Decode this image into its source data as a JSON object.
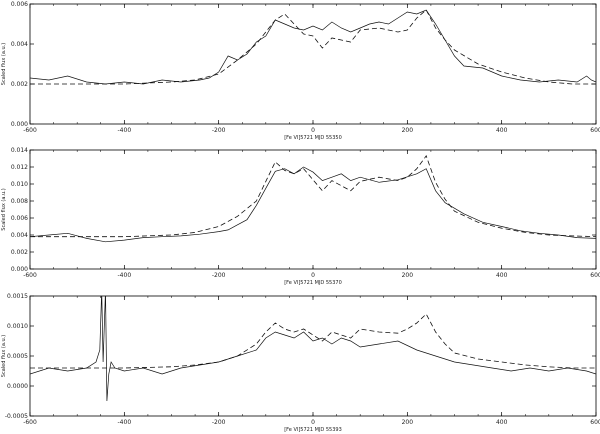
{
  "chart_data": [
    {
      "type": "line",
      "xlabel": "[Fe VI]5721   MJD 55350",
      "ylabel": "Scaled flux (a.u.)",
      "xlim": [
        -600,
        600
      ],
      "ylim": [
        0.0,
        0.006
      ],
      "xticks": [
        "-600",
        "-400",
        "-200",
        "0",
        "200",
        "400",
        "600"
      ],
      "yticks": [
        "0.000",
        "0.002",
        "0.004",
        "0.006"
      ],
      "series": [
        {
          "style": "solid",
          "x": [
            -600,
            -560,
            -520,
            -480,
            -440,
            -400,
            -360,
            -320,
            -280,
            -240,
            -220,
            -200,
            -180,
            -160,
            -140,
            -120,
            -100,
            -80,
            -60,
            -40,
            -20,
            0,
            20,
            40,
            60,
            80,
            100,
            120,
            140,
            160,
            180,
            200,
            220,
            240,
            260,
            280,
            300,
            320,
            360,
            400,
            440,
            480,
            520,
            560,
            580,
            590,
            600
          ],
          "y": [
            0.0023,
            0.0022,
            0.0024,
            0.0021,
            0.002,
            0.0021,
            0.002,
            0.0022,
            0.0021,
            0.0022,
            0.0023,
            0.0026,
            0.0034,
            0.0032,
            0.0035,
            0.0041,
            0.0044,
            0.0052,
            0.005,
            0.0048,
            0.0047,
            0.0049,
            0.0047,
            0.0051,
            0.0048,
            0.0046,
            0.0048,
            0.005,
            0.0051,
            0.005,
            0.0053,
            0.0056,
            0.0055,
            0.0057,
            0.005,
            0.0042,
            0.0034,
            0.0029,
            0.0028,
            0.0024,
            0.0022,
            0.0021,
            0.0022,
            0.0021,
            0.0024,
            0.0022,
            0.0021
          ]
        },
        {
          "style": "dashed",
          "x": [
            -600,
            -500,
            -400,
            -300,
            -250,
            -200,
            -160,
            -120,
            -100,
            -80,
            -60,
            -40,
            -20,
            0,
            20,
            40,
            60,
            80,
            100,
            140,
            180,
            200,
            220,
            240,
            260,
            280,
            300,
            350,
            400,
            450,
            500,
            550,
            600
          ],
          "y": [
            0.002,
            0.002,
            0.002,
            0.0021,
            0.0022,
            0.0025,
            0.0032,
            0.004,
            0.0046,
            0.0052,
            0.0055,
            0.005,
            0.0045,
            0.0044,
            0.0038,
            0.0043,
            0.0042,
            0.0041,
            0.0047,
            0.0048,
            0.0046,
            0.0047,
            0.0053,
            0.0057,
            0.0048,
            0.0042,
            0.0037,
            0.003,
            0.0026,
            0.0023,
            0.0021,
            0.002,
            0.002
          ]
        }
      ]
    },
    {
      "type": "line",
      "xlabel": "[Fe VI]5721   MJD 55370",
      "ylabel": "Scaled flux (a.u.)",
      "xlim": [
        -600,
        600
      ],
      "ylim": [
        0.0,
        0.014
      ],
      "xticks": [
        "-600",
        "-400",
        "-200",
        "0",
        "200",
        "400",
        "600"
      ],
      "yticks": [
        "0.000",
        "0.002",
        "0.004",
        "0.006",
        "0.008",
        "0.010",
        "0.012",
        "0.014"
      ],
      "series": [
        {
          "style": "solid",
          "x": [
            -600,
            -560,
            -520,
            -480,
            -440,
            -400,
            -360,
            -320,
            -280,
            -240,
            -200,
            -180,
            -160,
            -140,
            -120,
            -100,
            -80,
            -60,
            -40,
            -20,
            0,
            20,
            40,
            60,
            80,
            100,
            140,
            180,
            220,
            240,
            260,
            280,
            320,
            360,
            400,
            440,
            480,
            520,
            560,
            600
          ],
          "y": [
            0.0038,
            0.004,
            0.0042,
            0.0036,
            0.0032,
            0.0034,
            0.0037,
            0.0038,
            0.0039,
            0.0041,
            0.0044,
            0.0046,
            0.0052,
            0.0058,
            0.0075,
            0.0095,
            0.0115,
            0.0118,
            0.0112,
            0.012,
            0.0114,
            0.0104,
            0.0108,
            0.0112,
            0.0104,
            0.0108,
            0.0102,
            0.0105,
            0.0112,
            0.0118,
            0.0092,
            0.0078,
            0.0065,
            0.0055,
            0.005,
            0.0045,
            0.0042,
            0.004,
            0.0037,
            0.0036
          ]
        },
        {
          "style": "dashed",
          "x": [
            -600,
            -500,
            -400,
            -300,
            -250,
            -200,
            -160,
            -120,
            -100,
            -80,
            -60,
            -40,
            -20,
            0,
            20,
            40,
            60,
            80,
            100,
            140,
            180,
            200,
            220,
            240,
            260,
            280,
            300,
            350,
            400,
            450,
            500,
            550,
            600
          ],
          "y": [
            0.0038,
            0.0038,
            0.0038,
            0.004,
            0.0043,
            0.005,
            0.0062,
            0.008,
            0.0103,
            0.0126,
            0.0116,
            0.0112,
            0.0118,
            0.0105,
            0.0092,
            0.0104,
            0.0098,
            0.0092,
            0.0103,
            0.0108,
            0.0104,
            0.0108,
            0.0118,
            0.0133,
            0.0102,
            0.0082,
            0.0068,
            0.0055,
            0.0048,
            0.0043,
            0.004,
            0.0039,
            0.0038
          ]
        }
      ]
    },
    {
      "type": "line",
      "xlabel": "[Fe VI]5721   MJD 55393",
      "ylabel": "Scaled flux (a.u.)",
      "xlim": [
        -600,
        600
      ],
      "ylim": [
        -0.0005,
        0.0015
      ],
      "xticks": [
        "-600",
        "-400",
        "-200",
        "0",
        "200",
        "400",
        "600"
      ],
      "yticks": [
        "-0.0005",
        "0.0000",
        "0.0005",
        "0.0010",
        "0.0015"
      ],
      "series": [
        {
          "style": "solid",
          "x": [
            -600,
            -560,
            -520,
            -480,
            -460,
            -452,
            -448,
            -445,
            -440,
            -437,
            -433,
            -428,
            -420,
            -400,
            -360,
            -320,
            -280,
            -240,
            -200,
            -160,
            -120,
            -100,
            -80,
            -60,
            -40,
            -20,
            0,
            20,
            40,
            60,
            80,
            100,
            140,
            180,
            220,
            260,
            300,
            340,
            380,
            420,
            460,
            500,
            540,
            580,
            600
          ],
          "y": [
            0.0002,
            0.0003,
            0.00025,
            0.0003,
            0.0004,
            0.0006,
            0.0016,
            0.0004,
            0.0016,
            -0.00025,
            0.0002,
            0.0004,
            0.0003,
            0.00025,
            0.0003,
            0.0002,
            0.0003,
            0.00035,
            0.0004,
            0.0005,
            0.0006,
            0.0008,
            0.0009,
            0.00085,
            0.0008,
            0.0009,
            0.00075,
            0.0008,
            0.0007,
            0.0008,
            0.00075,
            0.00065,
            0.0007,
            0.00075,
            0.0006,
            0.0005,
            0.0004,
            0.00035,
            0.0003,
            0.00025,
            0.0003,
            0.00025,
            0.0003,
            0.00025,
            0.0002
          ]
        },
        {
          "style": "dashed",
          "x": [
            -600,
            -500,
            -400,
            -300,
            -250,
            -200,
            -160,
            -120,
            -100,
            -80,
            -60,
            -40,
            -20,
            0,
            20,
            40,
            60,
            80,
            100,
            140,
            180,
            200,
            220,
            240,
            260,
            280,
            300,
            350,
            400,
            450,
            500,
            550,
            600
          ],
          "y": [
            0.0003,
            0.0003,
            0.0003,
            0.00032,
            0.00035,
            0.0004,
            0.0005,
            0.0007,
            0.0009,
            0.00105,
            0.00095,
            0.0009,
            0.00095,
            0.00085,
            0.00075,
            0.0009,
            0.00085,
            0.0008,
            0.00095,
            0.0009,
            0.00088,
            0.00095,
            0.00105,
            0.0012,
            0.0009,
            0.0007,
            0.00055,
            0.00045,
            0.0004,
            0.00035,
            0.00032,
            0.0003,
            0.0003
          ]
        }
      ]
    }
  ]
}
